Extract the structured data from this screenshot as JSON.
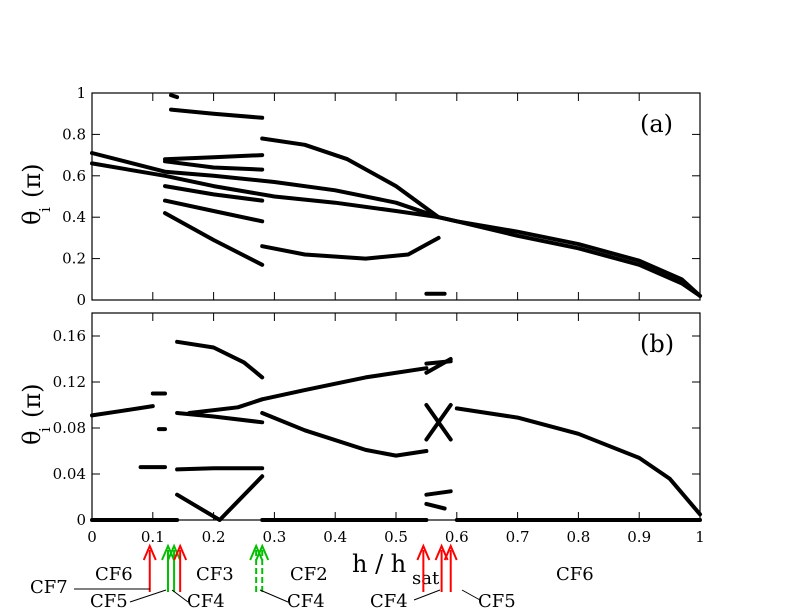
{
  "chart_data": [
    {
      "type": "line",
      "panel_label": "(a)",
      "ylabel_main": "θ",
      "ylabel_sub": "i",
      "ylabel_unit": "(π)",
      "xlim": [
        0,
        1
      ],
      "ylim": [
        0,
        1
      ],
      "yticks": [
        0,
        0.2,
        0.4,
        0.6,
        0.8,
        1
      ],
      "ytick_labels": [
        "0",
        "0.2",
        "0.4",
        "0.6",
        "0.8",
        "1"
      ],
      "series": [
        {
          "x": [
            0,
            0.12,
            0.2,
            0.3,
            0.4,
            0.5,
            0.57,
            0.6,
            0.7,
            0.8,
            0.9,
            0.97,
            1.0
          ],
          "y": [
            0.71,
            0.62,
            0.6,
            0.57,
            0.53,
            0.47,
            0.4,
            0.38,
            0.33,
            0.27,
            0.19,
            0.1,
            0.02
          ]
        },
        {
          "x": [
            0,
            0.12,
            0.2,
            0.3,
            0.4,
            0.5,
            0.57,
            0.6,
            0.7,
            0.8,
            0.9,
            0.97,
            1.0
          ],
          "y": [
            0.66,
            0.6,
            0.55,
            0.5,
            0.47,
            0.43,
            0.4,
            0.38,
            0.31,
            0.25,
            0.17,
            0.08,
            0.02
          ]
        },
        {
          "x": [
            0.12,
            0.2,
            0.28
          ],
          "y": [
            0.42,
            0.29,
            0.17
          ]
        },
        {
          "x": [
            0.12,
            0.2,
            0.28
          ],
          "y": [
            0.48,
            0.43,
            0.38
          ]
        },
        {
          "x": [
            0.12,
            0.2,
            0.28
          ],
          "y": [
            0.55,
            0.51,
            0.48
          ]
        },
        {
          "x": [
            0.12,
            0.2,
            0.28
          ],
          "y": [
            0.67,
            0.64,
            0.63
          ]
        },
        {
          "x": [
            0.12,
            0.2,
            0.28
          ],
          "y": [
            0.68,
            0.69,
            0.7
          ]
        },
        {
          "x": [
            0.13,
            0.2,
            0.28
          ],
          "y": [
            0.92,
            0.9,
            0.88
          ]
        },
        {
          "x": [
            0.28,
            0.35,
            0.42,
            0.5,
            0.57
          ],
          "y": [
            0.78,
            0.75,
            0.68,
            0.55,
            0.4
          ]
        },
        {
          "x": [
            0.28,
            0.35,
            0.45,
            0.52,
            0.57
          ],
          "y": [
            0.26,
            0.22,
            0.2,
            0.22,
            0.3
          ]
        },
        {
          "x": [
            0.55,
            0.58
          ],
          "y": [
            0.03,
            0.03
          ]
        },
        {
          "x": [
            0.13,
            0.14
          ],
          "y": [
            0.99,
            0.98
          ]
        }
      ]
    },
    {
      "type": "line",
      "panel_label": "(b)",
      "ylabel_main": "θ",
      "ylabel_sub": "i",
      "ylabel_unit": "(π)",
      "xlabel_main": "h / h",
      "xlabel_sub": "sat",
      "xlim": [
        0,
        1
      ],
      "ylim": [
        0,
        0.18
      ],
      "xticks": [
        0,
        0.1,
        0.2,
        0.3,
        0.4,
        0.5,
        0.6,
        0.7,
        0.8,
        0.9,
        1
      ],
      "xtick_labels": [
        "0",
        "0.1",
        "0.2",
        "0.3",
        "0.4",
        "0.5",
        "0.6",
        "0.7",
        "0.8",
        "0.9",
        "1"
      ],
      "yticks": [
        0,
        0.04,
        0.08,
        0.12,
        0.16
      ],
      "ytick_labels": [
        "0",
        "0.04",
        "0.08",
        "0.12",
        "0.16"
      ],
      "series": [
        {
          "x": [
            0,
            0.05,
            0.1
          ],
          "y": [
            0.091,
            0.095,
            0.099
          ]
        },
        {
          "x": [
            0.6,
            0.7,
            0.8,
            0.9,
            0.95,
            1.0
          ],
          "y": [
            0.097,
            0.089,
            0.075,
            0.054,
            0.036,
            0.005
          ]
        },
        {
          "x": [
            0.14,
            0.2,
            0.25,
            0.28
          ],
          "y": [
            0.155,
            0.15,
            0.137,
            0.124
          ]
        },
        {
          "x": [
            0.14,
            0.2,
            0.28
          ],
          "y": [
            0.093,
            0.09,
            0.085
          ]
        },
        {
          "x": [
            0.14,
            0.2,
            0.28
          ],
          "y": [
            0.044,
            0.045,
            0.045
          ]
        },
        {
          "x": [
            0.28,
            0.35,
            0.45,
            0.55
          ],
          "y": [
            0.105,
            0.113,
            0.124,
            0.132
          ]
        },
        {
          "x": [
            0.28,
            0.35,
            0.45,
            0.5,
            0.55
          ],
          "y": [
            0.093,
            0.078,
            0.061,
            0.056,
            0.06
          ]
        },
        {
          "x": [
            0.14,
            0.21,
            0.28
          ],
          "y": [
            0.022,
            0.0,
            0.038
          ]
        },
        {
          "x": [
            0.16,
            0.24,
            0.28
          ],
          "y": [
            0.093,
            0.098,
            0.105
          ]
        },
        {
          "x": [
            0.55,
            0.59
          ],
          "y": [
            0.136,
            0.138
          ]
        },
        {
          "x": [
            0.55,
            0.59
          ],
          "y": [
            0.128,
            0.14
          ]
        },
        {
          "x": [
            0.55,
            0.59
          ],
          "y": [
            0.07,
            0.1
          ]
        },
        {
          "x": [
            0.55,
            0.59
          ],
          "y": [
            0.1,
            0.07
          ]
        },
        {
          "x": [
            0.08,
            0.12
          ],
          "y": [
            0.046,
            0.046
          ]
        },
        {
          "x": [
            0.1,
            0.12
          ],
          "y": [
            0.11,
            0.11
          ]
        },
        {
          "x": [
            0.11,
            0.12
          ],
          "y": [
            0.079,
            0.079
          ]
        },
        {
          "x": [
            0.55,
            0.59
          ],
          "y": [
            0.022,
            0.025
          ]
        },
        {
          "x": [
            0.55,
            0.58
          ],
          "y": [
            0.014,
            0.01
          ]
        },
        {
          "x": [
            0,
            0.14
          ],
          "y": [
            0,
            0
          ]
        },
        {
          "x": [
            0.28,
            0.55
          ],
          "y": [
            0,
            0
          ]
        },
        {
          "x": [
            0.6,
            1.0
          ],
          "y": [
            0,
            0
          ]
        }
      ]
    }
  ],
  "annotations": {
    "colors": {
      "red": "#ff0000",
      "green": "#00c000",
      "black": "#000000"
    },
    "arrows": [
      {
        "x": 0.095,
        "color": "#ff0000",
        "style": "solid"
      },
      {
        "x": 0.125,
        "color": "#00c000",
        "style": "solid"
      },
      {
        "x": 0.135,
        "color": "#00c000",
        "style": "solid"
      },
      {
        "x": 0.145,
        "color": "#ff0000",
        "style": "solid"
      },
      {
        "x": 0.27,
        "color": "#00c000",
        "style": "dashed"
      },
      {
        "x": 0.28,
        "color": "#00c000",
        "style": "dashed"
      },
      {
        "x": 0.545,
        "color": "#ff0000",
        "style": "solid"
      },
      {
        "x": 0.575,
        "color": "#ff0000",
        "style": "solid"
      },
      {
        "x": 0.59,
        "color": "#ff0000",
        "style": "solid"
      }
    ],
    "labels": [
      {
        "id": "cf7",
        "text": "CF7"
      },
      {
        "id": "cf6-left",
        "text": "CF6"
      },
      {
        "id": "cf5-left",
        "text": "CF5"
      },
      {
        "id": "cf4-a",
        "text": "CF4"
      },
      {
        "id": "cf3",
        "text": "CF3"
      },
      {
        "id": "cf2",
        "text": "CF2"
      },
      {
        "id": "cf4-b",
        "text": "CF4"
      },
      {
        "id": "cf4-c",
        "text": "CF4"
      },
      {
        "id": "cf5-right",
        "text": "CF5"
      },
      {
        "id": "cf6-right",
        "text": "CF6"
      }
    ]
  }
}
